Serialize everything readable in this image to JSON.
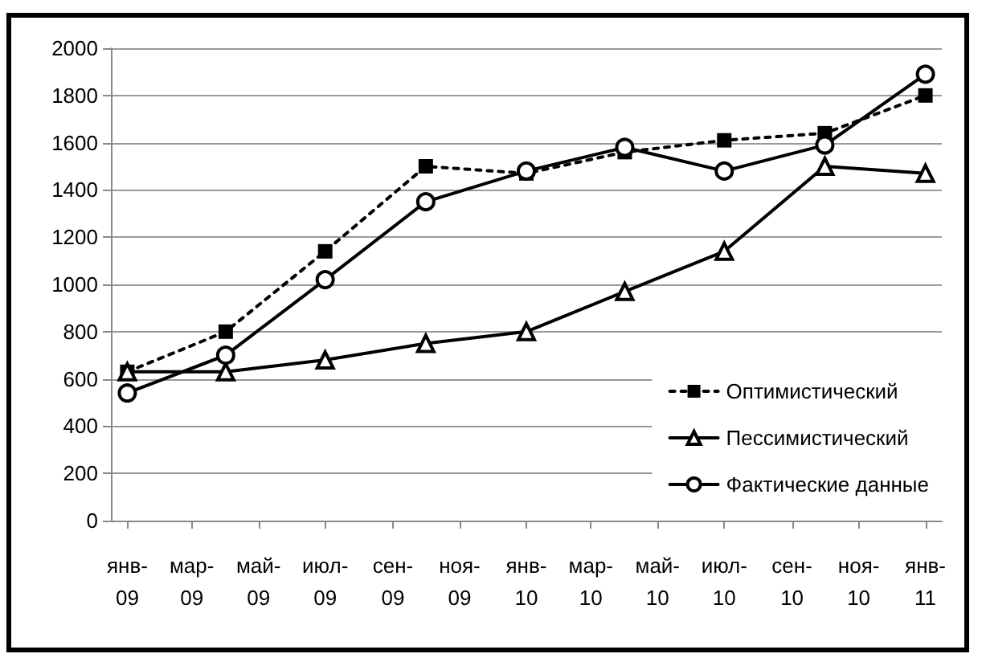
{
  "chart_data": {
    "type": "line",
    "x": [
      "2009-01",
      "2009-04",
      "2009-07",
      "2009-10",
      "2010-01",
      "2010-04",
      "2010-07",
      "2010-10",
      "2011-01"
    ],
    "xlim": [
      "2008-12-17",
      "2011-01-16"
    ],
    "xticks": [
      {
        "value": "2009-01",
        "label": "янв-09"
      },
      {
        "value": "2009-03",
        "label": "мар-09"
      },
      {
        "value": "2009-05",
        "label": "май-09"
      },
      {
        "value": "2009-07",
        "label": "июл-09"
      },
      {
        "value": "2009-09",
        "label": "сен-09"
      },
      {
        "value": "2009-11",
        "label": "ноя-09"
      },
      {
        "value": "2010-01",
        "label": "янв-10"
      },
      {
        "value": "2010-03",
        "label": "мар-10"
      },
      {
        "value": "2010-05",
        "label": "май-10"
      },
      {
        "value": "2010-07",
        "label": "июл-10"
      },
      {
        "value": "2010-09",
        "label": "сен-10"
      },
      {
        "value": "2010-11",
        "label": "ноя-10"
      },
      {
        "value": "2011-01",
        "label": "янв-11"
      }
    ],
    "ylim": [
      0,
      2000
    ],
    "yticks": [
      0,
      200,
      400,
      600,
      800,
      1000,
      1200,
      1400,
      1600,
      1800,
      2000
    ],
    "grid": "y",
    "legend": "bottom right",
    "series": [
      {
        "name": "Оптимистический",
        "color": "#000000",
        "marker": "square",
        "line_style": "dotted",
        "values": [
          630,
          800,
          1140,
          1500,
          1470,
          1560,
          1610,
          1640,
          1800
        ]
      },
      {
        "name": "Пессимистический",
        "color": "#000000",
        "marker": "triangle",
        "line_style": "solid",
        "values": [
          630,
          630,
          680,
          750,
          800,
          970,
          1140,
          1500,
          1470
        ]
      },
      {
        "name": "Фактические данные",
        "color": "#000000",
        "marker": "circle",
        "line_style": "solid",
        "values": [
          540,
          700,
          1020,
          1350,
          1480,
          1580,
          1480,
          1590,
          1890
        ]
      }
    ]
  }
}
